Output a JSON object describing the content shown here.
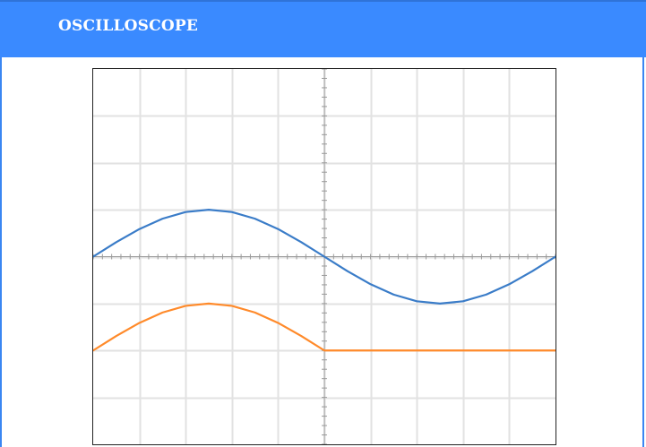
{
  "app": {
    "title": "OSCILLOSCOPE"
  },
  "colors": {
    "header": "#3a8aff",
    "grid": "#e2e2e2",
    "axis": "#9a9a9a",
    "channel_1": "#3a7cc8",
    "channel_2": "#ff8a2a"
  },
  "scope": {
    "divisions": {
      "horizontal": 10,
      "vertical": 8
    }
  },
  "chart_data": {
    "type": "line",
    "xlim": [
      0,
      10
    ],
    "ylim": [
      -4,
      4
    ],
    "grid": true,
    "series": [
      {
        "color": "#3a7cc8",
        "x": [
          0,
          0.5,
          1,
          1.5,
          2,
          2.5,
          3,
          3.5,
          4,
          4.5,
          5,
          5.5,
          6,
          6.5,
          7,
          7.5,
          8,
          8.5,
          9,
          9.5,
          10
        ],
        "y": [
          0,
          0.309,
          0.588,
          0.809,
          0.951,
          1,
          0.951,
          0.809,
          0.588,
          0.309,
          0,
          -0.309,
          -0.588,
          -0.809,
          -0.951,
          -1,
          -0.951,
          -0.809,
          -0.588,
          -0.309,
          0
        ]
      },
      {
        "color": "#ff8a2a",
        "x": [
          0,
          0.5,
          1,
          1.5,
          2,
          2.5,
          3,
          3.5,
          4,
          4.5,
          5,
          5.5,
          6,
          6.5,
          7,
          7.5,
          8,
          8.5,
          9,
          9.5,
          10
        ],
        "y": [
          -2,
          -1.691,
          -1.412,
          -1.191,
          -1.049,
          -1,
          -1.049,
          -1.191,
          -1.412,
          -1.691,
          -2,
          -2,
          -2,
          -2,
          -2,
          -2,
          -2,
          -2,
          -2,
          -2,
          -2
        ]
      }
    ]
  }
}
